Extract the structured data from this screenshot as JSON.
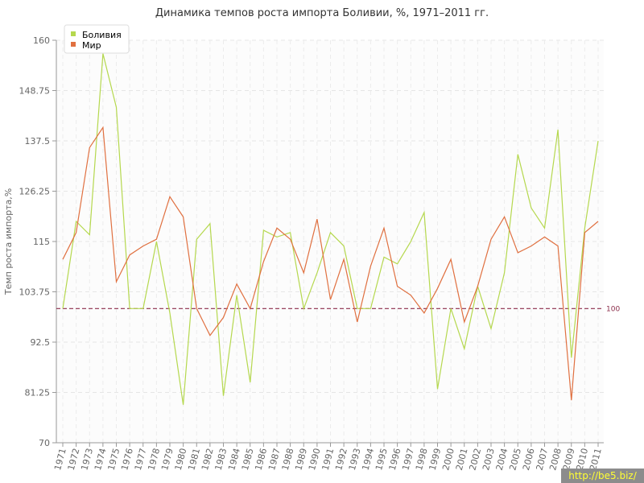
{
  "chart_data": {
    "type": "line",
    "title": "Динамика темпов роста импорта Боливии, %, 1971–2011 гг.",
    "ylabel": "Темп роста импорта,%",
    "ylim": [
      70,
      160
    ],
    "yticks": [
      "70",
      "81.25",
      "92.5",
      "103.75",
      "115",
      "126.25",
      "137.5",
      "148.75",
      "160"
    ],
    "x": [
      "1971",
      "1972",
      "1973",
      "1974",
      "1975",
      "1976",
      "1977",
      "1978",
      "1979",
      "1980",
      "1981",
      "1982",
      "1983",
      "1984",
      "1985",
      "1986",
      "1987",
      "1988",
      "1989",
      "1990",
      "1991",
      "1992",
      "1993",
      "1994",
      "1995",
      "1996",
      "1997",
      "1998",
      "1999",
      "2000",
      "2001",
      "2002",
      "2003",
      "2004",
      "2005",
      "2006",
      "2007",
      "2008",
      "2009",
      "2010",
      "2011"
    ],
    "reference_line": {
      "value": 100,
      "label": "100",
      "color": "#8b2d4a"
    },
    "grid": true,
    "legend_position": "top-left",
    "series": [
      {
        "name": "Боливия",
        "color": "#b5d84e",
        "values": [
          100,
          119.5,
          116.5,
          157,
          145,
          100,
          100,
          115,
          99,
          78.5,
          115.5,
          119,
          80.5,
          103,
          83.5,
          117.5,
          116,
          117,
          100,
          108,
          117,
          114,
          100,
          100,
          111.5,
          110,
          115,
          121.5,
          82,
          100,
          91,
          105,
          95.5,
          108,
          134.5,
          122.5,
          118,
          140,
          89,
          118,
          137.5
        ]
      },
      {
        "name": "Мир",
        "color": "#e07040",
        "values": [
          111,
          117,
          136,
          140.5,
          106,
          112,
          114,
          115.5,
          125,
          120.5,
          100,
          94,
          98,
          105.5,
          100,
          110.5,
          118,
          115.5,
          108,
          120,
          102,
          111,
          97,
          109.5,
          118,
          105,
          103,
          99,
          104.5,
          111,
          97,
          105,
          115.5,
          120.5,
          112.5,
          114,
          116,
          114,
          79.5,
          117,
          119.5
        ]
      }
    ]
  },
  "watermark": "http://be5.biz/"
}
